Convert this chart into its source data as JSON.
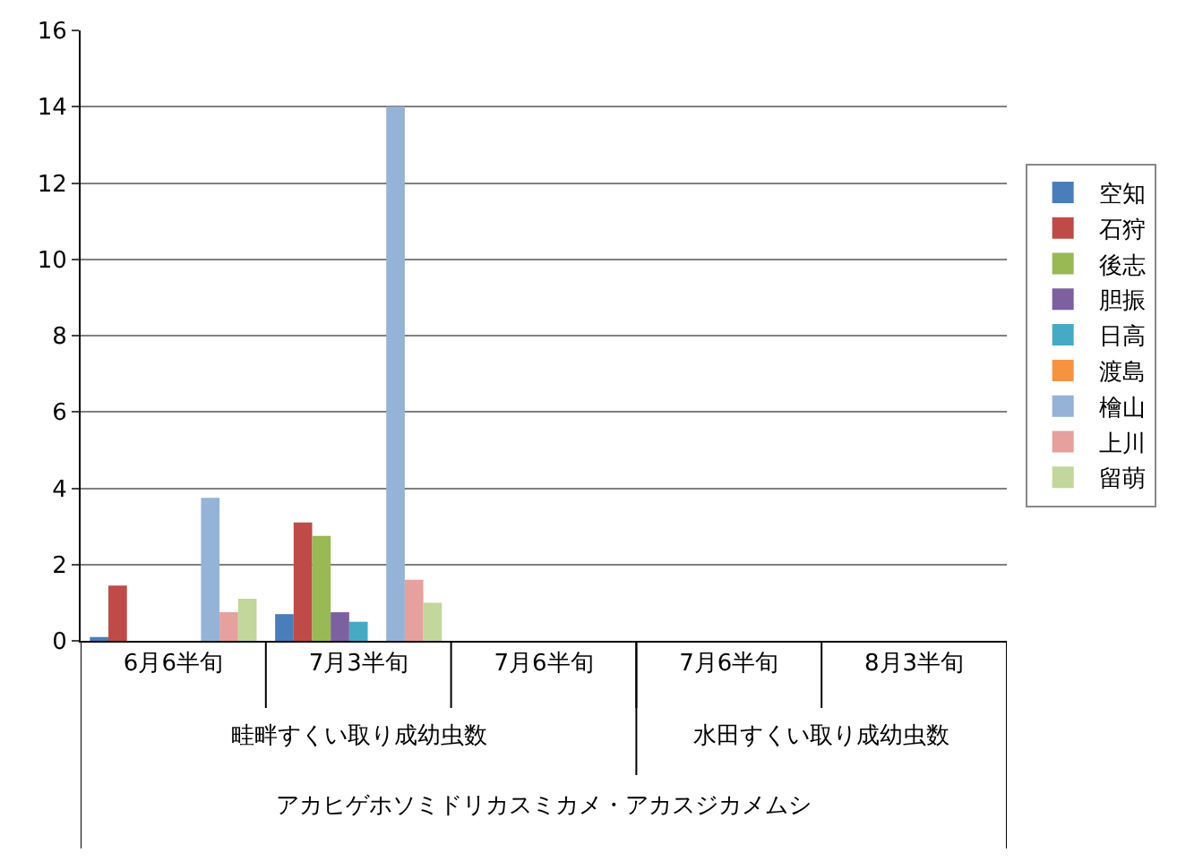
{
  "chart_data": {
    "type": "bar",
    "categories": [
      "6月6半旬",
      "7月3半旬",
      "7月6半旬",
      "7月6半旬",
      "8月3半旬"
    ],
    "series": [
      {
        "name": "空知",
        "color": "#4a7ebb",
        "values": [
          0.1,
          0.7,
          0,
          0,
          0
        ]
      },
      {
        "name": "石狩",
        "color": "#be4b48",
        "values": [
          1.45,
          3.1,
          0,
          0,
          0
        ]
      },
      {
        "name": "後志",
        "color": "#98b954",
        "values": [
          0,
          2.75,
          0,
          0,
          0
        ]
      },
      {
        "name": "胆振",
        "color": "#7d60a0",
        "values": [
          0,
          0.75,
          0,
          0,
          0
        ]
      },
      {
        "name": "日高",
        "color": "#46aac5",
        "values": [
          0,
          0.5,
          0,
          0,
          0
        ]
      },
      {
        "name": "渡島",
        "color": "#f69240",
        "values": [
          0,
          0,
          0,
          0,
          0
        ]
      },
      {
        "name": "檜山",
        "color": "#95b3d7",
        "values": [
          3.75,
          14,
          0,
          0,
          0
        ]
      },
      {
        "name": "上川",
        "color": "#e6a09e",
        "values": [
          0.75,
          1.6,
          0,
          0,
          0
        ]
      },
      {
        "name": "留萌",
        "color": "#c3d69b",
        "values": [
          1.1,
          1.0,
          0,
          0,
          0
        ]
      }
    ],
    "annotations": [
      "畦畔すくい取り成幼虫数",
      "水田すくい取り成幼虫数",
      "アカヒゲホソミドリカスミカメ・アカスジカメムシ"
    ],
    "ylim": [
      0,
      16
    ],
    "yticks": [
      0,
      2,
      4,
      6,
      8,
      10,
      12,
      14,
      16
    ],
    "grid": "y",
    "legend": "right"
  }
}
